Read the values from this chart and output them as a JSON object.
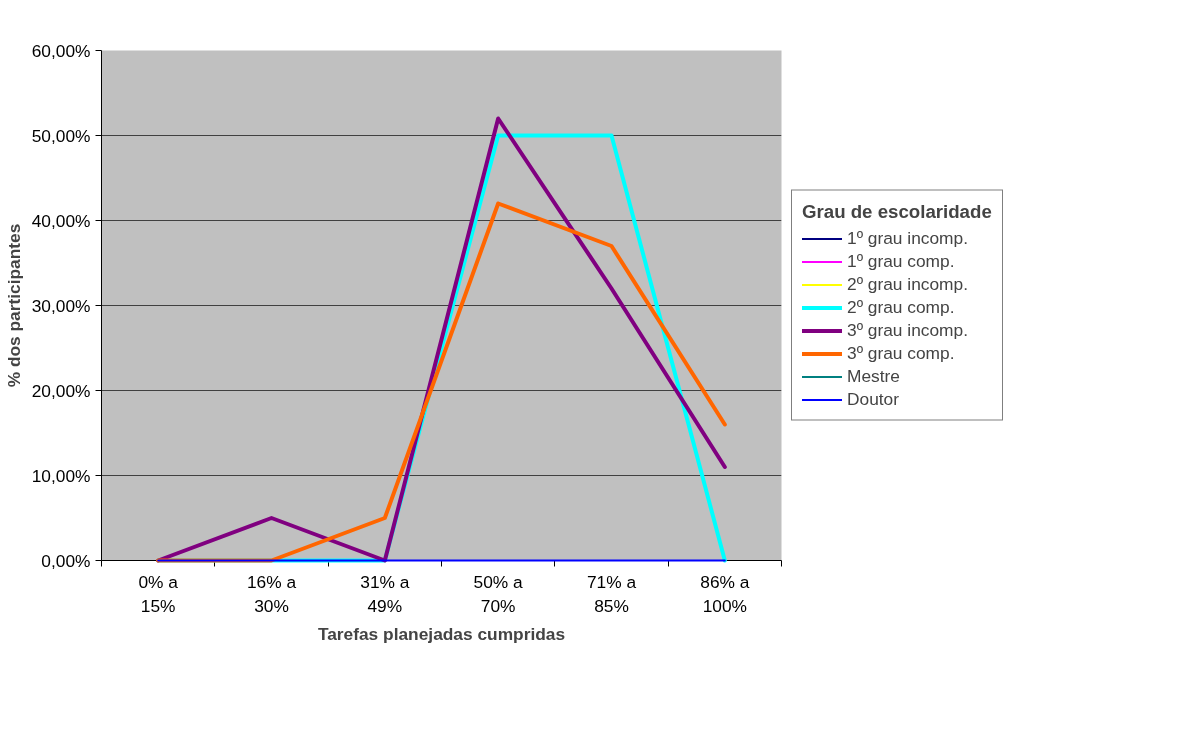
{
  "chart_data": {
    "type": "line",
    "xlabel": "Tarefas planejadas cumpridas",
    "ylabel": "% dos participantes",
    "legend_title": "Grau de escolaridade",
    "categories": [
      "0% a\n15%",
      "16% a\n30%",
      "31% a\n49%",
      "50% a\n70%",
      "71% a\n85%",
      "86% a\n100%"
    ],
    "ylim": [
      0,
      60
    ],
    "yticks": [
      {
        "value": 0,
        "label": "0,00%"
      },
      {
        "value": 10,
        "label": "10,00%"
      },
      {
        "value": 20,
        "label": "20,00%"
      },
      {
        "value": 30,
        "label": "30,00%"
      },
      {
        "value": 40,
        "label": "40,00%"
      },
      {
        "value": 50,
        "label": "50,00%"
      },
      {
        "value": 60,
        "label": "60,00%"
      }
    ],
    "grid": "y",
    "legend": "right",
    "marker": "none",
    "line_style": "solid",
    "series": [
      {
        "name": "1º grau incomp.",
        "color": "#000080",
        "values": [
          null,
          null,
          null,
          null,
          null,
          null
        ]
      },
      {
        "name": "1º grau comp.",
        "color": "#ff00ff",
        "values": [
          null,
          null,
          null,
          null,
          null,
          null
        ]
      },
      {
        "name": "2º grau incomp.",
        "color": "#ffff00",
        "values": [
          null,
          null,
          null,
          null,
          null,
          null
        ]
      },
      {
        "name": "2º grau comp.",
        "color": "#00ffff",
        "values": [
          0,
          0,
          0,
          50,
          50,
          0
        ]
      },
      {
        "name": "3º grau incomp.",
        "color": "#800080",
        "values": [
          0,
          5,
          0,
          52,
          32,
          11
        ]
      },
      {
        "name": "3º grau comp.",
        "color": "#ff6600",
        "values": [
          0,
          0,
          5,
          42,
          37,
          16
        ]
      },
      {
        "name": "Mestre",
        "color": "#008080",
        "values": [
          null,
          null,
          null,
          null,
          null,
          null
        ]
      },
      {
        "name": "Doutor",
        "color": "#0000ff",
        "values": [
          0,
          0,
          0,
          0,
          0,
          0
        ]
      }
    ]
  }
}
